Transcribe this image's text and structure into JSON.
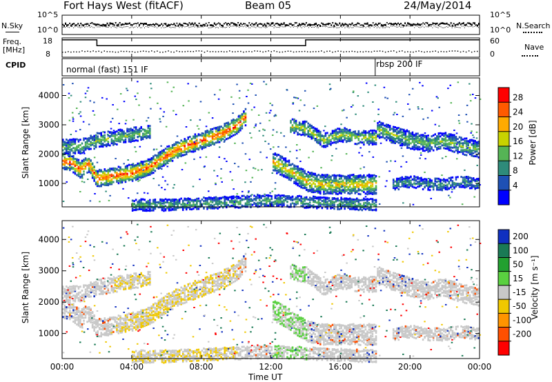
{
  "header": {
    "title": "Fort Hays West (fitACF)",
    "beam": "Beam 05",
    "date": "24/May/2014"
  },
  "noise_panel": {
    "left_label": "N.Sky",
    "right_label": "N.Search",
    "left_ticks": [
      "10^5",
      "10^0"
    ],
    "right_ticks": [
      "10^5",
      "10^0"
    ]
  },
  "freq_panel": {
    "left_label_1": "Freq.",
    "left_label_2": "[MHz]",
    "right_label": "Nave",
    "left_ticks": [
      "18",
      "8"
    ],
    "right_ticks": [
      "60",
      "0"
    ]
  },
  "cpid_panel": {
    "label": "CPID",
    "mode_1": "normal (fast) 151 IF",
    "mode_2": "rbsp 200 IF"
  },
  "power_panel": {
    "ylabel": "Slant Range [km]",
    "yticks": [
      "4000",
      "3000",
      "2000",
      "1000"
    ],
    "colorbar_label": "Power [dB]",
    "colorbar_ticks": [
      "28",
      "24",
      "20",
      "16",
      "12",
      "8",
      "4"
    ],
    "colorbar_colors": [
      "#ff0000",
      "#ff5a00",
      "#ffaa00",
      "#c8d200",
      "#55b455",
      "#2e8b7a",
      "#1e50b4",
      "#0000ff"
    ]
  },
  "velocity_panel": {
    "ylabel": "Slant Range [km]",
    "yticks": [
      "4000",
      "3000",
      "2000",
      "1000"
    ],
    "colorbar_label": "Velocity [m s⁻¹]",
    "colorbar_ticks": [
      "200",
      "100",
      "50",
      "15",
      "-15",
      "-50",
      "-100",
      "-200"
    ],
    "colorbar_colors": [
      "#1030c0",
      "#1a7a55",
      "#22a030",
      "#5ad040",
      "#c8c8c8",
      "#f0c800",
      "#ff9400",
      "#ff5000",
      "#ff0000"
    ]
  },
  "x_axis": {
    "label": "Time UT",
    "ticks": [
      "00:00",
      "04:00",
      "08:00",
      "12:00",
      "16:00",
      "20:00",
      "00:00"
    ]
  },
  "chart_data": {
    "type": "heatmap",
    "title": "Fort Hays West (fitACF)",
    "xlabel": "Time UT",
    "ylabel": "Slant Range [km]",
    "xlim": [
      0,
      24
    ],
    "ylim": [
      200,
      4600
    ],
    "cpid_switch_hour": 18.0,
    "freq_step": {
      "high_mhz": 17,
      "low_mhz": 14,
      "low_from_h": 2.0,
      "low_to_h": 14.0
    },
    "power_range_db": [
      0,
      30
    ],
    "velocity_range_ms": [
      -250,
      250
    ],
    "echo_bands": [
      {
        "name": "main_trace",
        "points": [
          [
            0,
            1800
          ],
          [
            0.5,
            1750
          ],
          [
            1,
            1500
          ],
          [
            1.5,
            1700
          ],
          [
            2,
            1200
          ],
          [
            3,
            1300
          ],
          [
            4,
            1400
          ],
          [
            5,
            1600
          ],
          [
            6,
            2000
          ],
          [
            7,
            2300
          ],
          [
            8,
            2500
          ],
          [
            9,
            2700
          ],
          [
            10,
            3000
          ],
          [
            10.5,
            3300
          ]
        ],
        "width_km": 250,
        "peak_power": 26
      },
      {
        "name": "upper_trace",
        "points": [
          [
            0,
            2300
          ],
          [
            1,
            2300
          ],
          [
            2,
            2500
          ],
          [
            3,
            2600
          ],
          [
            4,
            2700
          ],
          [
            5,
            2800
          ]
        ],
        "width_km": 200,
        "peak_power": 14
      },
      {
        "name": "afternoon_low",
        "points": [
          [
            12,
            1800
          ],
          [
            13,
            1500
          ],
          [
            14,
            1100
          ],
          [
            15,
            1000
          ],
          [
            16,
            1000
          ],
          [
            17,
            1000
          ],
          [
            18,
            1000
          ]
        ],
        "width_km": 300,
        "peak_power": 20
      },
      {
        "name": "afternoon_high",
        "points": [
          [
            13,
            3000
          ],
          [
            14,
            2900
          ],
          [
            15,
            2500
          ],
          [
            16,
            2700
          ],
          [
            17,
            2600
          ],
          [
            18,
            2600
          ]
        ],
        "width_km": 200,
        "peak_power": 16
      },
      {
        "name": "evening",
        "points": [
          [
            18,
            2900
          ],
          [
            19,
            2700
          ],
          [
            20,
            2500
          ],
          [
            21,
            2400
          ],
          [
            22,
            2500
          ],
          [
            23,
            2300
          ],
          [
            24,
            2200
          ]
        ],
        "width_km": 250,
        "peak_power": 14
      },
      {
        "name": "evening_low",
        "points": [
          [
            19,
            1000
          ],
          [
            20,
            1100
          ],
          [
            21,
            1000
          ],
          [
            22,
            1000
          ],
          [
            23,
            1100
          ],
          [
            24,
            1000
          ]
        ],
        "width_km": 150,
        "peak_power": 10
      },
      {
        "name": "ground_near",
        "points": [
          [
            4,
            300
          ],
          [
            6,
            300
          ],
          [
            8,
            350
          ],
          [
            10,
            400
          ],
          [
            12,
            450
          ],
          [
            14,
            400
          ],
          [
            16,
            350
          ],
          [
            18,
            300
          ]
        ],
        "width_km": 150,
        "peak_power": 12
      }
    ]
  }
}
